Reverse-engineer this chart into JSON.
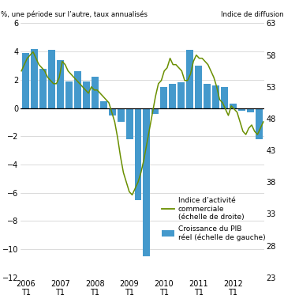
{
  "title_left": "%, une période sur l’autre, taux annualisés",
  "title_right": "Indice de diffusion",
  "bar_data": [
    3.9,
    4.2,
    2.8,
    4.1,
    3.4,
    1.9,
    2.6,
    1.9,
    2.2,
    0.5,
    -0.5,
    -1.0,
    -2.2,
    -6.5,
    -10.5,
    -0.4,
    1.5,
    1.7,
    1.8,
    4.1,
    3.0,
    1.7,
    1.6,
    1.5,
    0.3,
    -0.2,
    -0.3,
    -2.2
  ],
  "line_y": [
    55.5,
    56.5,
    57.5,
    58.0,
    58.5,
    57.5,
    56.5,
    56.0,
    55.5,
    54.5,
    54.0,
    53.5,
    53.5,
    54.5,
    57.0,
    56.5,
    55.5,
    55.0,
    54.5,
    54.0,
    53.5,
    53.0,
    52.5,
    52.0,
    53.0,
    52.5,
    52.5,
    52.0,
    51.5,
    51.0,
    50.5,
    49.0,
    47.5,
    45.0,
    42.0,
    39.5,
    38.0,
    36.5,
    36.0,
    37.0,
    38.0,
    39.5,
    41.5,
    44.0,
    46.5,
    49.0,
    51.5,
    53.5,
    54.0,
    55.5,
    56.0,
    57.5,
    56.5,
    56.5,
    56.0,
    55.5,
    54.0,
    54.0,
    55.0,
    57.0,
    58.0,
    57.5,
    57.5,
    57.0,
    56.5,
    55.5,
    54.5,
    53.0,
    51.0,
    50.5,
    49.5,
    48.5,
    50.0,
    49.5,
    49.0,
    47.5,
    46.0,
    45.5,
    46.5,
    47.0,
    46.0,
    45.5,
    46.5,
    47.5
  ],
  "bar_color_light": "#8ac4e0",
  "bar_color_dark": "#2176ae",
  "bar_color": "#4499cc",
  "line_color": "#6a8f00",
  "ylim_left": [
    -12,
    6
  ],
  "ylim_right": [
    23,
    63
  ],
  "yticks_left": [
    -12,
    -10,
    -8,
    -6,
    -4,
    -2,
    0,
    2,
    4,
    6
  ],
  "yticks_right": [
    23,
    28,
    33,
    38,
    43,
    48,
    53,
    58,
    63
  ],
  "xtick_labels": [
    "2006\nT1",
    "2007\nT1",
    "2008\nT1",
    "2009\nT1",
    "2010\nT1",
    "2011\nT1",
    "2012\nT1"
  ],
  "legend_line": "Indice d’activité\ncommerciale\n(échelle de droite)",
  "legend_bar": "Croissance du PIB\nréel (échelle de gauche)"
}
